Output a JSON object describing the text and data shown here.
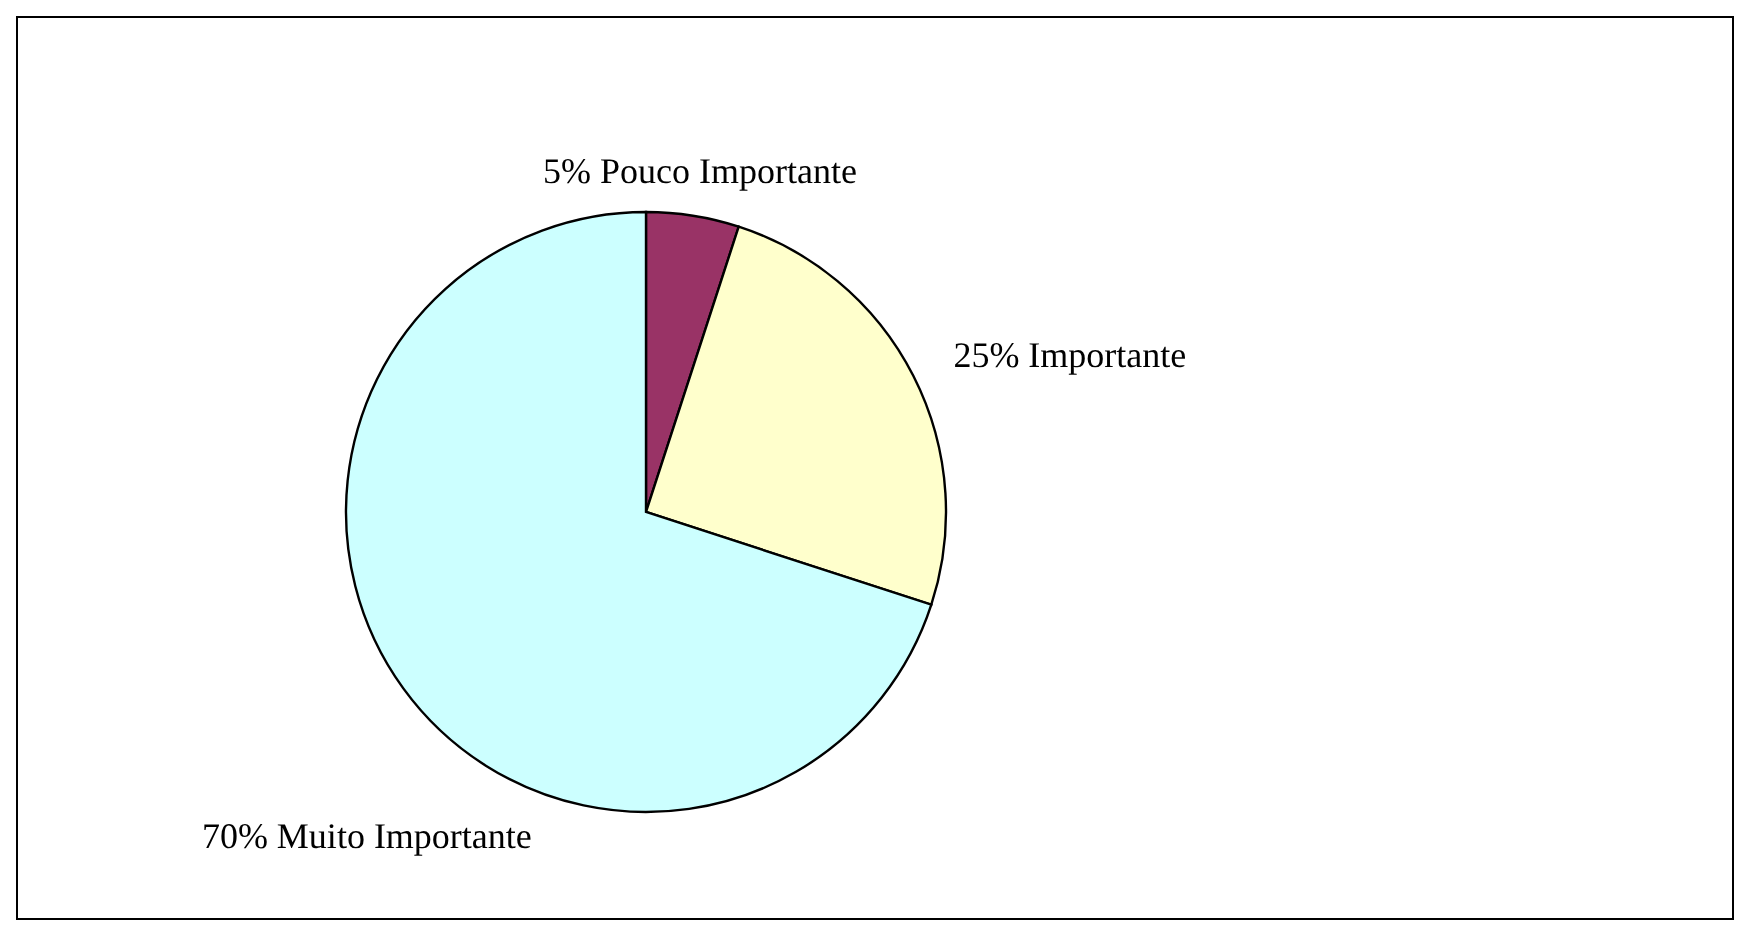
{
  "chart_data": {
    "type": "pie",
    "categories": [
      "Pouco Importante",
      "Importante",
      "Muito Importante"
    ],
    "values": [
      5,
      25,
      70
    ],
    "value_labels": [
      "5%",
      "25%",
      "70%"
    ],
    "colors": [
      "#993366",
      "#ffffcc",
      "#ccffff"
    ],
    "legend": false
  }
}
